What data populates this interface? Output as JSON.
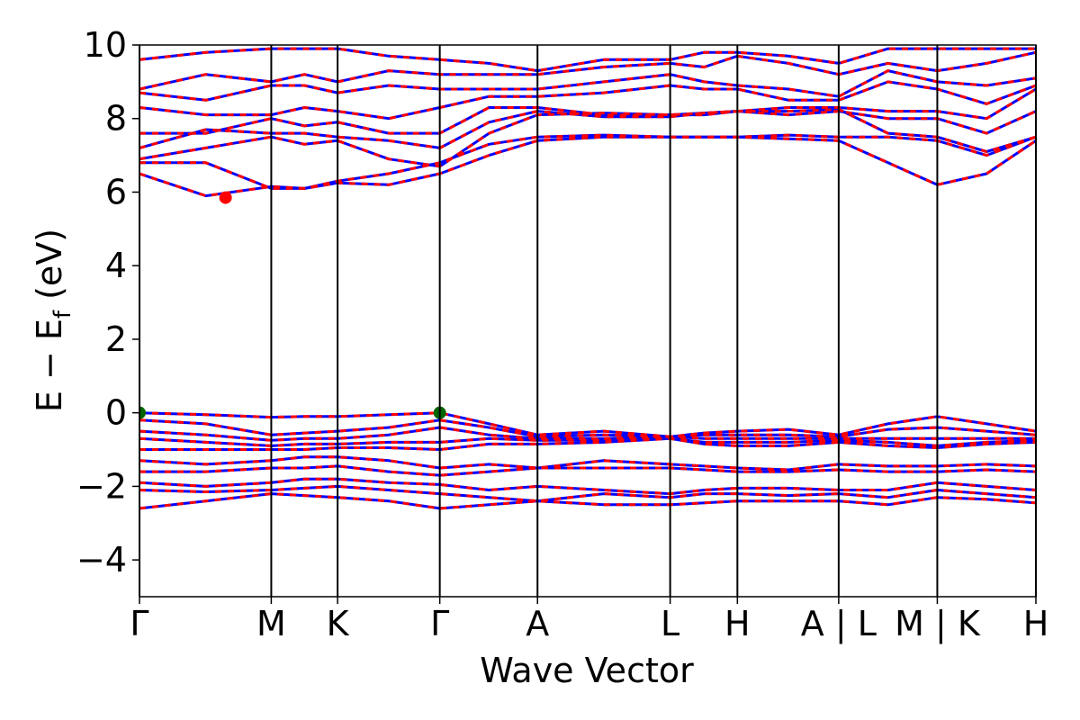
{
  "chart_data": {
    "type": "line",
    "ylabel": [
      "E − E",
      "f",
      " (eV)"
    ],
    "xlabel": "Wave Vector",
    "ylim": [
      -5,
      10
    ],
    "yticks": [
      {
        "value": -4,
        "label": "−4"
      },
      {
        "value": -2,
        "label": "−2"
      },
      0,
      2,
      4,
      6,
      8,
      10
    ],
    "xlim": [
      0,
      1
    ],
    "xticks": [
      {
        "value": 0,
        "label": "Γ"
      },
      {
        "value": 0.147,
        "label": "M"
      },
      {
        "value": 0.221,
        "label": "K"
      },
      {
        "value": 0.335,
        "label": "Γ"
      },
      {
        "value": 0.444,
        "label": "A"
      },
      {
        "value": 0.592,
        "label": "L"
      },
      {
        "value": 0.667,
        "label": "H"
      },
      {
        "value": 0.78,
        "label": "A | L"
      },
      {
        "value": 0.89,
        "label": "M | K"
      },
      {
        "value": 1,
        "label": "H"
      }
    ],
    "line_color": "#0000ff",
    "dash_color": "#ff0000",
    "x": [
      0,
      0.074,
      0.147,
      0.184,
      0.221,
      0.278,
      0.335,
      0.39,
      0.444,
      0.518,
      0.592,
      0.63,
      0.667,
      0.724,
      0.78,
      0.835,
      0.89,
      0.945,
      1
    ],
    "series": [
      {
        "values": [
          6.5,
          5.9,
          6.15,
          6.1,
          6.25,
          6.2,
          6.5,
          7.0,
          7.4,
          7.5,
          7.5,
          7.5,
          7.5,
          7.45,
          7.4,
          6.8,
          6.2,
          6.5,
          7.4
        ]
      },
      {
        "values": [
          6.8,
          6.8,
          6.1,
          6.1,
          6.3,
          6.5,
          6.8,
          7.3,
          7.5,
          7.55,
          7.5,
          7.5,
          7.5,
          7.55,
          7.5,
          7.5,
          7.4,
          7.0,
          7.5
        ]
      },
      {
        "values": [
          6.9,
          7.2,
          7.5,
          7.3,
          7.4,
          6.9,
          6.7,
          7.6,
          8.1,
          8.15,
          8.1,
          8.15,
          8.2,
          8.2,
          8.25,
          7.6,
          7.5,
          7.1,
          7.5
        ]
      },
      {
        "values": [
          7.2,
          7.7,
          7.6,
          7.6,
          7.5,
          7.4,
          7.2,
          7.9,
          8.2,
          8.05,
          8.05,
          8.15,
          8.2,
          8.1,
          8.2,
          8.0,
          8.0,
          7.6,
          8.2
        ]
      },
      {
        "values": [
          7.6,
          7.6,
          8.0,
          7.8,
          7.9,
          7.6,
          7.6,
          8.3,
          8.3,
          8.1,
          8.1,
          8.1,
          8.2,
          8.3,
          8.3,
          8.2,
          8.2,
          8.0,
          8.8
        ]
      },
      {
        "values": [
          8.3,
          8.1,
          8.1,
          8.3,
          8.2,
          8.0,
          8.3,
          8.6,
          8.6,
          8.7,
          8.9,
          8.8,
          8.8,
          8.5,
          8.5,
          9.0,
          8.8,
          8.4,
          8.9
        ]
      },
      {
        "values": [
          8.7,
          8.5,
          8.9,
          8.9,
          8.7,
          8.9,
          8.8,
          8.8,
          8.8,
          9.0,
          9.2,
          9.0,
          8.9,
          8.8,
          8.6,
          9.3,
          9.0,
          8.9,
          9.1
        ]
      },
      {
        "values": [
          8.8,
          9.2,
          9.0,
          9.2,
          9.0,
          9.3,
          9.2,
          9.2,
          9.2,
          9.4,
          9.5,
          9.4,
          9.7,
          9.5,
          9.2,
          9.5,
          9.3,
          9.5,
          9.8
        ]
      },
      {
        "values": [
          9.6,
          9.8,
          9.9,
          9.9,
          9.9,
          9.7,
          9.6,
          9.5,
          9.3,
          9.6,
          9.6,
          9.8,
          9.8,
          9.7,
          9.5,
          9.9,
          9.9,
          9.9,
          9.9
        ]
      },
      {
        "values": [
          0,
          -0.05,
          -0.12,
          -0.1,
          -0.1,
          -0.05,
          0,
          -0.3,
          -0.6,
          -0.5,
          -0.65,
          -0.55,
          -0.5,
          -0.45,
          -0.6,
          -0.3,
          -0.1,
          -0.3,
          -0.5
        ]
      },
      {
        "values": [
          -0.2,
          -0.3,
          -0.6,
          -0.55,
          -0.5,
          -0.4,
          -0.2,
          -0.4,
          -0.65,
          -0.6,
          -0.65,
          -0.6,
          -0.6,
          -0.6,
          -0.65,
          -0.45,
          -0.4,
          -0.5,
          -0.6
        ]
      },
      {
        "values": [
          -0.5,
          -0.6,
          -0.75,
          -0.7,
          -0.7,
          -0.6,
          -0.4,
          -0.6,
          -0.7,
          -0.7,
          -0.65,
          -0.7,
          -0.7,
          -0.7,
          -0.7,
          -0.7,
          -0.7,
          -0.7,
          -0.7
        ]
      },
      {
        "values": [
          -0.7,
          -0.8,
          -0.9,
          -0.85,
          -0.85,
          -0.8,
          -0.8,
          -0.7,
          -0.75,
          -0.75,
          -0.7,
          -0.8,
          -0.8,
          -0.8,
          -0.75,
          -0.8,
          -0.9,
          -0.8,
          -0.75
        ]
      },
      {
        "values": [
          -1.0,
          -1.0,
          -1.0,
          -1.0,
          -0.95,
          -0.95,
          -1.0,
          -0.85,
          -0.85,
          -0.8,
          -0.7,
          -0.85,
          -0.9,
          -0.9,
          -0.8,
          -0.9,
          -0.95,
          -0.85,
          -0.8
        ]
      },
      {
        "values": [
          -1.3,
          -1.4,
          -1.3,
          -1.2,
          -1.2,
          -1.3,
          -1.5,
          -1.4,
          -1.5,
          -1.3,
          -1.4,
          -1.45,
          -1.5,
          -1.55,
          -1.4,
          -1.45,
          -1.45,
          -1.4,
          -1.45
        ]
      },
      {
        "values": [
          -1.6,
          -1.6,
          -1.5,
          -1.5,
          -1.45,
          -1.6,
          -1.7,
          -1.6,
          -1.5,
          -1.5,
          -1.5,
          -1.55,
          -1.6,
          -1.6,
          -1.55,
          -1.6,
          -1.6,
          -1.55,
          -1.6
        ]
      },
      {
        "values": [
          -1.9,
          -2.0,
          -1.9,
          -1.8,
          -1.8,
          -1.9,
          -1.95,
          -2.1,
          -2.0,
          -2.1,
          -2.2,
          -2.1,
          -2.05,
          -2.05,
          -2.1,
          -2.1,
          -1.9,
          -2.0,
          -2.1
        ]
      },
      {
        "values": [
          -2.1,
          -2.15,
          -2.1,
          -2.05,
          -2.0,
          -2.1,
          -2.2,
          -2.3,
          -2.4,
          -2.2,
          -2.3,
          -2.2,
          -2.2,
          -2.25,
          -2.2,
          -2.3,
          -2.1,
          -2.2,
          -2.3
        ]
      },
      {
        "values": [
          -2.6,
          -2.4,
          -2.2,
          -2.25,
          -2.3,
          -2.4,
          -2.6,
          -2.5,
          -2.4,
          -2.5,
          -2.5,
          -2.45,
          -2.4,
          -2.4,
          -2.4,
          -2.5,
          -2.3,
          -2.35,
          -2.45
        ]
      }
    ],
    "markers": [
      {
        "x": 0.096,
        "y": 5.85,
        "color": "#ff0000"
      },
      {
        "x": 0,
        "y": 0,
        "color": "#006400"
      },
      {
        "x": 0.335,
        "y": 0,
        "color": "#006400"
      }
    ]
  }
}
